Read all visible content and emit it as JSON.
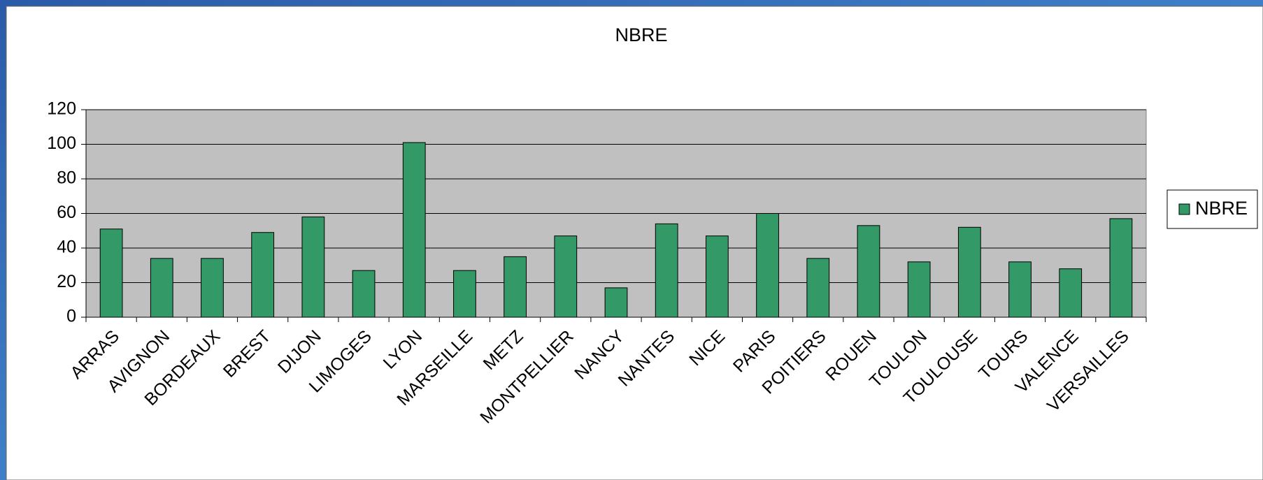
{
  "chart_data": {
    "type": "bar",
    "title": "NBRE",
    "categories": [
      "ARRAS",
      "AVIGNON",
      "BORDEAUX",
      "BREST",
      "DIJON",
      "LIMOGES",
      "LYON",
      "MARSEILLE",
      "METZ",
      "MONTPELLIER",
      "NANCY",
      "NANTES",
      "NICE",
      "PARIS",
      "POITIERS",
      "ROUEN",
      "TOULON",
      "TOULOUSE",
      "TOURS",
      "VALENCE",
      "VERSAILLES"
    ],
    "series": [
      {
        "name": "NBRE",
        "color": "#339966",
        "values": [
          51,
          34,
          34,
          49,
          58,
          27,
          101,
          27,
          35,
          47,
          17,
          54,
          47,
          60,
          34,
          53,
          32,
          52,
          32,
          28,
          57
        ]
      }
    ],
    "ylim": [
      0,
      120
    ],
    "yticks": [
      0,
      20,
      40,
      60,
      80,
      100,
      120
    ],
    "grid": true,
    "legend": "right"
  }
}
